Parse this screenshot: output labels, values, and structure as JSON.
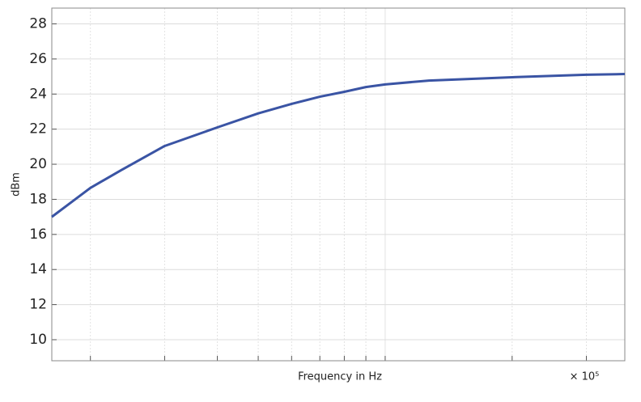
{
  "chart_data": {
    "type": "line",
    "xlabel": "Frequency in Hz",
    "ylabel": "dBm",
    "x_multiplier": "× 10⁵",
    "x": [
      16200,
      20000,
      23650,
      30000,
      40000,
      50000,
      60000,
      70000,
      80000,
      90000,
      100000,
      127000,
      200000,
      300000,
      370000
    ],
    "series": [
      {
        "color": "#3a54a4",
        "values": [
          17.0,
          18.65,
          19.66,
          21.04,
          22.1,
          22.9,
          23.44,
          23.85,
          24.13,
          24.4,
          24.55,
          24.77,
          24.96,
          25.1,
          25.14
        ]
      }
    ],
    "xscale": "log",
    "xlim": [
      16200,
      370000
    ],
    "xticks": [
      20000,
      30000,
      40000,
      50000,
      60000,
      70000,
      80000,
      90000,
      100000,
      200000,
      300000
    ],
    "ylim": [
      8.8,
      28.9
    ],
    "yticks": [
      10,
      12,
      14,
      16,
      18,
      20,
      22,
      24,
      26,
      28
    ],
    "grid": true
  }
}
